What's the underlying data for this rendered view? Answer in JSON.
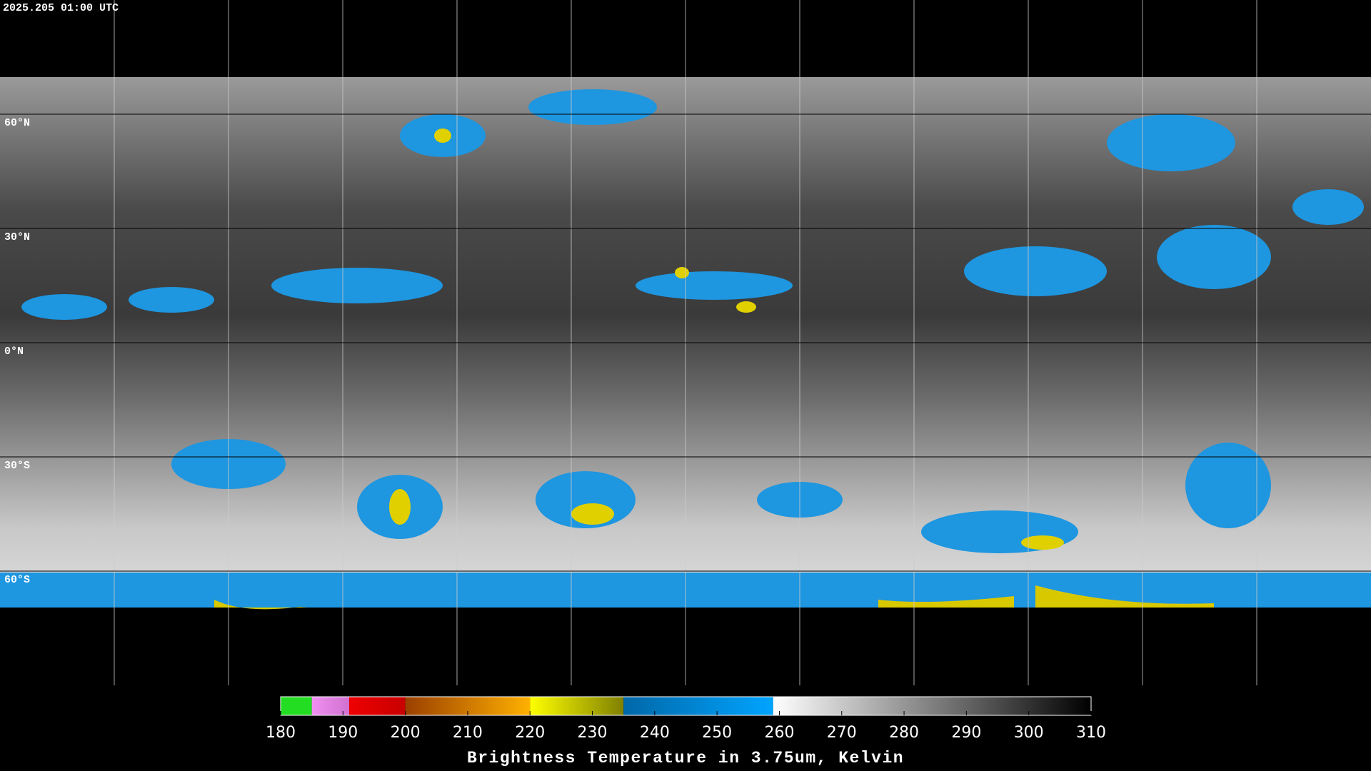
{
  "header": {
    "timestamp": "2025.205 01:00 UTC"
  },
  "map": {
    "latitude_labels": [
      "60°N",
      "30°N",
      "0°N",
      "30°S",
      "60°S"
    ]
  },
  "colorbar": {
    "range": [
      180,
      310
    ],
    "ticks": [
      180,
      190,
      200,
      210,
      220,
      230,
      240,
      250,
      260,
      270,
      280,
      290,
      300,
      310
    ],
    "segments": [
      {
        "from": 180,
        "to": 185,
        "colors": [
          "#22dd22",
          "#22dd22"
        ]
      },
      {
        "from": 185,
        "to": 191,
        "colors": [
          "#f090f0",
          "#d070d0"
        ]
      },
      {
        "from": 191,
        "to": 200,
        "colors": [
          "#ee0000",
          "#c80000"
        ]
      },
      {
        "from": 200,
        "to": 220,
        "colors": [
          "#9a4000",
          "#ffb000"
        ]
      },
      {
        "from": 220,
        "to": 235,
        "colors": [
          "#ffff00",
          "#808000"
        ]
      },
      {
        "from": 235,
        "to": 259,
        "colors": [
          "#0068a8",
          "#00a4ff"
        ]
      },
      {
        "from": 259,
        "to": 310,
        "colors": [
          "#ffffff",
          "#000000"
        ]
      }
    ],
    "label": "Brightness Temperature in 3.75um, Kelvin"
  }
}
